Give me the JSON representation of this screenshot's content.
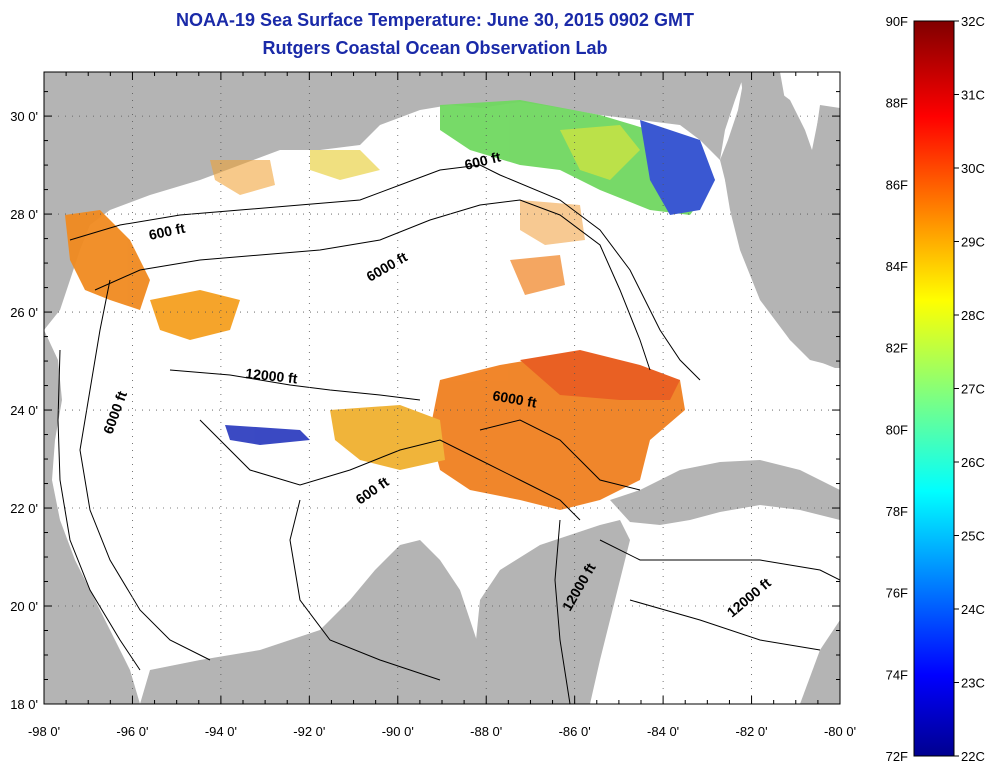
{
  "header": {
    "title": "NOAA-19 Sea Surface Temperature:  June 30, 2015 0902 GMT",
    "subtitle": "Rutgers Coastal Ocean Observation Lab"
  },
  "map": {
    "lon_ticks": [
      "-98 0'",
      "-96 0'",
      "-94 0'",
      "-92 0'",
      "-90 0'",
      "-88 0'",
      "-86 0'",
      "-84 0'",
      "-82 0'",
      "-80 0'"
    ],
    "lat_ticks": [
      "30 0'",
      "28 0'",
      "26 0'",
      "24 0'",
      "22 0'",
      "20 0'",
      "18 0'"
    ],
    "contour_labels": [
      "600 ft",
      "600 ft",
      "6000 ft",
      "6000 ft",
      "12000 ft",
      "6000 ft",
      "600 ft",
      "12000 ft",
      "12000 ft"
    ],
    "colors": {
      "land": "#b4b4b4",
      "ocean": "#ffffff",
      "grid": "#555555"
    }
  },
  "colorbar": {
    "f_labels": [
      "90F",
      "88F",
      "86F",
      "84F",
      "82F",
      "80F",
      "78F",
      "76F",
      "74F",
      "72F"
    ],
    "c_labels": [
      "32C",
      "31C",
      "30C",
      "29C",
      "28C",
      "27C",
      "26C",
      "25C",
      "24C",
      "23C",
      "22C"
    ]
  }
}
